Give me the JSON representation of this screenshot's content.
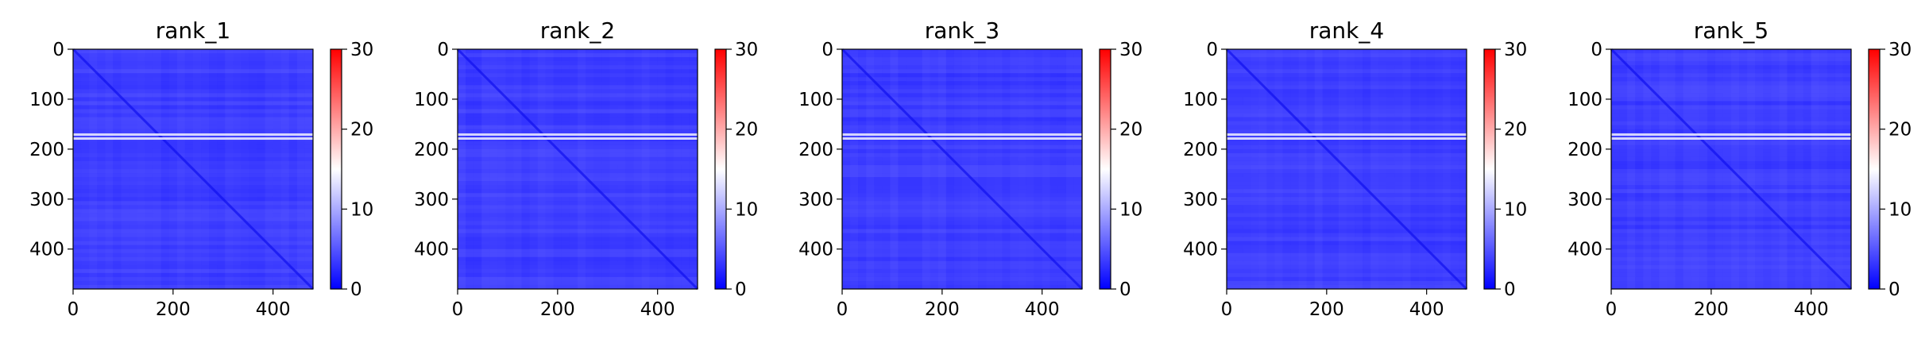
{
  "chart_data": [
    {
      "type": "heatmap",
      "title": "rank_1",
      "xlim": [
        0,
        480
      ],
      "ylim": [
        480,
        0
      ],
      "xticks": [
        0,
        200,
        400
      ],
      "xtick_labels": [
        "0",
        "200",
        "400"
      ],
      "yticks": [
        0,
        100,
        200,
        300,
        400
      ],
      "ytick_labels": [
        "0",
        "100",
        "200",
        "300",
        "400"
      ],
      "colorbar": {
        "min": 0,
        "max": 30,
        "ticks": [
          0,
          10,
          20,
          30
        ],
        "tick_labels": [
          "0",
          "10",
          "20",
          "30"
        ]
      },
      "bright_rows": [
        170,
        178
      ],
      "diagonal": true
    },
    {
      "type": "heatmap",
      "title": "rank_2",
      "xlim": [
        0,
        480
      ],
      "ylim": [
        480,
        0
      ],
      "xticks": [
        0,
        200,
        400
      ],
      "xtick_labels": [
        "0",
        "200",
        "400"
      ],
      "yticks": [
        0,
        100,
        200,
        300,
        400
      ],
      "ytick_labels": [
        "0",
        "100",
        "200",
        "300",
        "400"
      ],
      "colorbar": {
        "min": 0,
        "max": 30,
        "ticks": [
          0,
          10,
          20,
          30
        ],
        "tick_labels": [
          "0",
          "10",
          "20",
          "30"
        ]
      },
      "bright_rows": [
        170,
        178
      ],
      "diagonal": true
    },
    {
      "type": "heatmap",
      "title": "rank_3",
      "xlim": [
        0,
        480
      ],
      "ylim": [
        480,
        0
      ],
      "xticks": [
        0,
        200,
        400
      ],
      "xtick_labels": [
        "0",
        "200",
        "400"
      ],
      "yticks": [
        0,
        100,
        200,
        300,
        400
      ],
      "ytick_labels": [
        "0",
        "100",
        "200",
        "300",
        "400"
      ],
      "colorbar": {
        "min": 0,
        "max": 30,
        "ticks": [
          0,
          10,
          20,
          30
        ],
        "tick_labels": [
          "0",
          "10",
          "20",
          "30"
        ]
      },
      "bright_rows": [
        170,
        178
      ],
      "diagonal": true
    },
    {
      "type": "heatmap",
      "title": "rank_4",
      "xlim": [
        0,
        480
      ],
      "ylim": [
        480,
        0
      ],
      "xticks": [
        0,
        200,
        400
      ],
      "xtick_labels": [
        "0",
        "200",
        "400"
      ],
      "yticks": [
        0,
        100,
        200,
        300,
        400
      ],
      "ytick_labels": [
        "0",
        "100",
        "200",
        "300",
        "400"
      ],
      "colorbar": {
        "min": 0,
        "max": 30,
        "ticks": [
          0,
          10,
          20,
          30
        ],
        "tick_labels": [
          "0",
          "10",
          "20",
          "30"
        ]
      },
      "bright_rows": [
        170,
        178
      ],
      "diagonal": true
    },
    {
      "type": "heatmap",
      "title": "rank_5",
      "xlim": [
        0,
        480
      ],
      "ylim": [
        480,
        0
      ],
      "xticks": [
        0,
        200,
        400
      ],
      "xtick_labels": [
        "0",
        "200",
        "400"
      ],
      "yticks": [
        0,
        100,
        200,
        300,
        400
      ],
      "ytick_labels": [
        "0",
        "100",
        "200",
        "300",
        "400"
      ],
      "colorbar": {
        "min": 0,
        "max": 30,
        "ticks": [
          0,
          10,
          20,
          30
        ],
        "tick_labels": [
          "0",
          "10",
          "20",
          "30"
        ]
      },
      "bright_rows": [
        170,
        178
      ],
      "diagonal": true
    }
  ],
  "colors": {
    "cmap": [
      "#0000ff",
      "#ffffff",
      "#ff0000"
    ],
    "cell_base": "#2a2aff",
    "cell_light": "#8a8aff",
    "bright_row": "#e6e6ff",
    "diagonal": "#1010ee",
    "axis": "#000000"
  }
}
